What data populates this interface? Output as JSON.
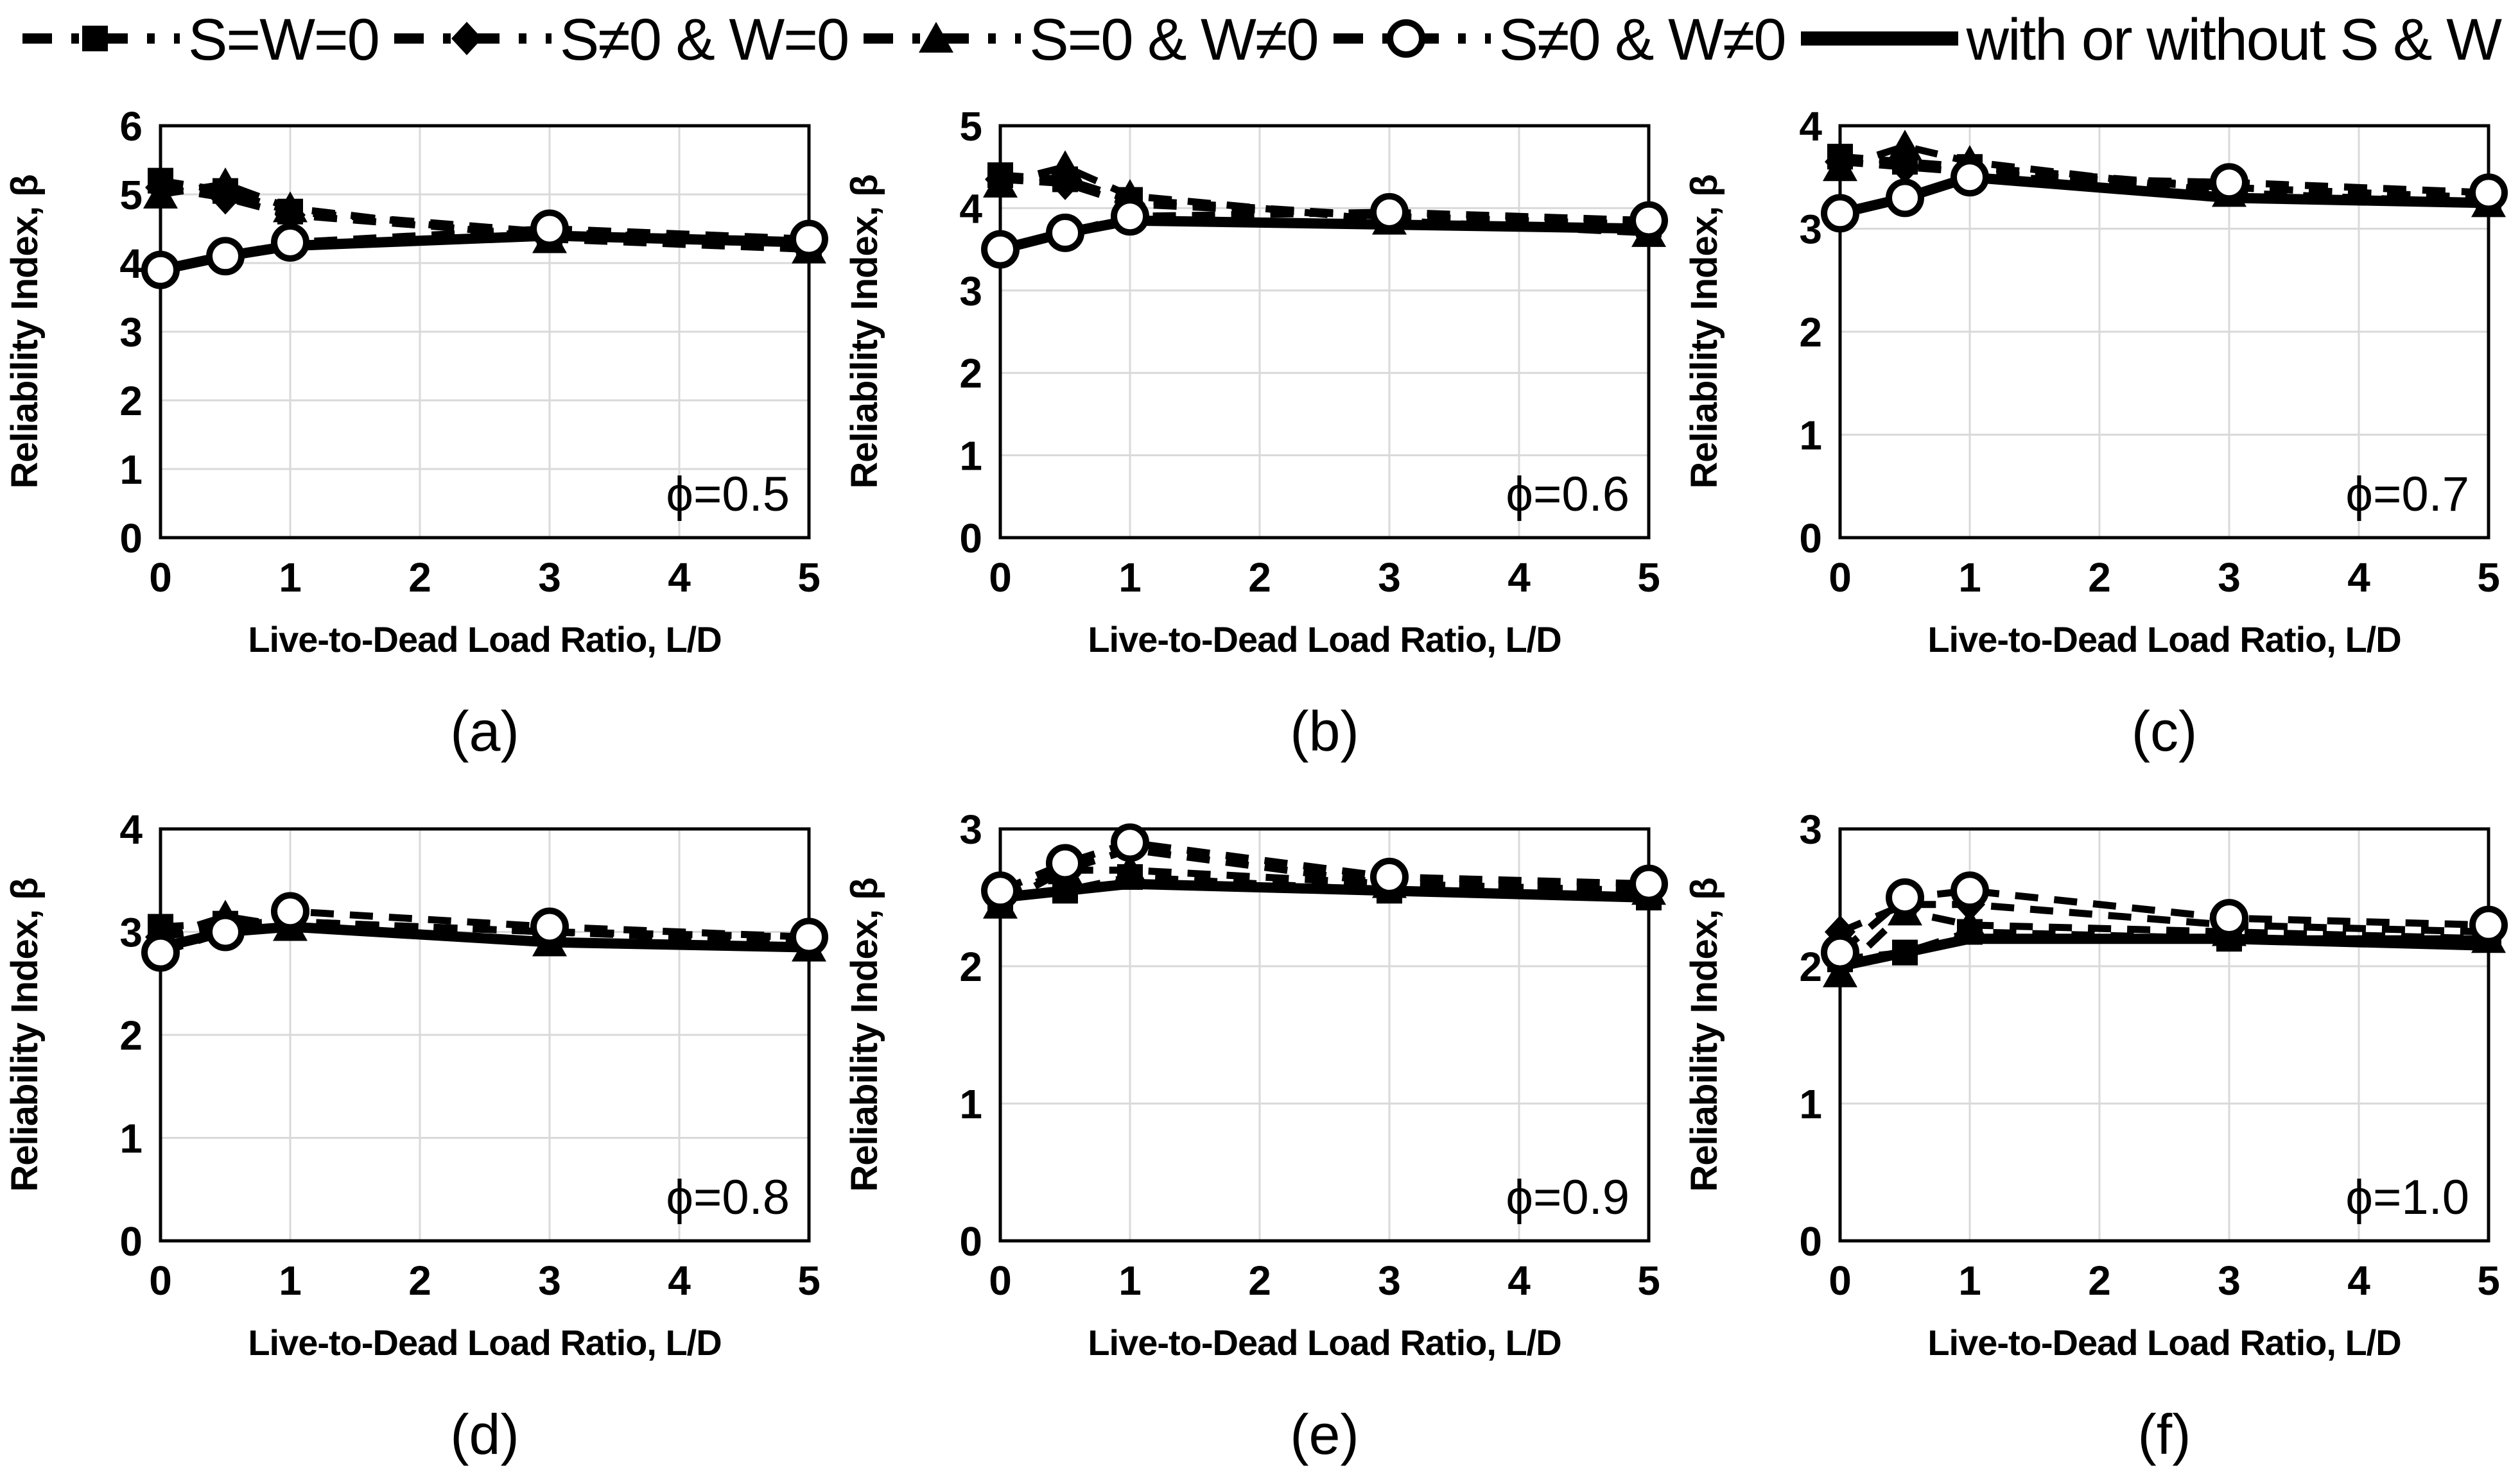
{
  "figure": {
    "xlabel": "Live-to-Dead Load Ratio, L/D",
    "ylabel": "Reliability Index, β",
    "series_color": "#000000",
    "grid_color": "#d9d9d9",
    "background_color": "#ffffff"
  },
  "legend": {
    "position": "top",
    "items": [
      {
        "label": "S=W=0",
        "marker": "square",
        "line": "dashed"
      },
      {
        "label": "S≠0 & W=0",
        "marker": "diamond",
        "line": "dashed"
      },
      {
        "label": "S=0 & W≠0",
        "marker": "triangle",
        "line": "dashed"
      },
      {
        "label": "S≠0 & W≠0",
        "marker": "circle-open",
        "line": "dashed"
      },
      {
        "label": "with or without S & W",
        "marker": "none",
        "line": "solid"
      }
    ]
  },
  "chart_data": [
    {
      "type": "line",
      "panel": "a",
      "caption": "(a)",
      "annotation": "ϕ=0.5",
      "xlabel": "Live-to-Dead Load Ratio, L/D",
      "ylabel": "Reliability Index, β",
      "x": [
        0,
        0.5,
        1,
        3,
        5
      ],
      "xlim": [
        0,
        5
      ],
      "xticks": [
        0,
        1,
        2,
        3,
        4,
        5
      ],
      "ylim": [
        0,
        6
      ],
      "yticks": [
        0,
        1,
        2,
        3,
        4,
        5,
        6
      ],
      "grid": true,
      "series": [
        {
          "name": "S=W=0",
          "marker": "square",
          "line": "dashed",
          "values": [
            5.2,
            5.05,
            4.75,
            4.45,
            4.3
          ]
        },
        {
          "name": "S≠0 & W=0",
          "marker": "diamond",
          "line": "dashed",
          "values": [
            5.1,
            4.95,
            4.7,
            4.4,
            4.3
          ]
        },
        {
          "name": "S=0 & W≠0",
          "marker": "triangle",
          "line": "dashed",
          "values": [
            5.0,
            5.15,
            4.8,
            4.35,
            4.2
          ]
        },
        {
          "name": "S≠0 & W≠0",
          "marker": "circle-open",
          "line": "dashed",
          "values": [
            3.9,
            4.1,
            4.3,
            4.5,
            4.35
          ]
        },
        {
          "name": "with or without S & W",
          "marker": "none",
          "line": "solid",
          "values": [
            3.9,
            4.1,
            4.25,
            4.4,
            4.3
          ]
        }
      ]
    },
    {
      "type": "line",
      "panel": "b",
      "caption": "(b)",
      "annotation": "ϕ=0.6",
      "xlabel": "Live-to-Dead Load Ratio, L/D",
      "ylabel": "Reliability Index, β",
      "x": [
        0,
        0.5,
        1,
        3,
        5
      ],
      "xlim": [
        0,
        5
      ],
      "xticks": [
        0,
        1,
        2,
        3,
        4,
        5
      ],
      "ylim": [
        0,
        5
      ],
      "yticks": [
        0,
        1,
        2,
        3,
        4,
        5
      ],
      "grid": true,
      "series": [
        {
          "name": "S=W=0",
          "marker": "square",
          "line": "dashed",
          "values": [
            4.4,
            4.35,
            4.1,
            3.9,
            3.8
          ]
        },
        {
          "name": "S≠0 & W=0",
          "marker": "diamond",
          "line": "dashed",
          "values": [
            4.35,
            4.3,
            4.05,
            3.9,
            3.8
          ]
        },
        {
          "name": "S=0 & W≠0",
          "marker": "triangle",
          "line": "dashed",
          "values": [
            4.3,
            4.5,
            4.15,
            3.85,
            3.7
          ]
        },
        {
          "name": "S≠0 & W≠0",
          "marker": "circle-open",
          "line": "dashed",
          "values": [
            3.5,
            3.7,
            3.9,
            3.95,
            3.85
          ]
        },
        {
          "name": "with or without S & W",
          "marker": "none",
          "line": "solid",
          "values": [
            3.5,
            3.7,
            3.85,
            3.8,
            3.75
          ]
        }
      ]
    },
    {
      "type": "line",
      "panel": "c",
      "caption": "(c)",
      "annotation": "ϕ=0.7",
      "xlabel": "Live-to-Dead Load Ratio, L/D",
      "ylabel": "Reliability Index, β",
      "x": [
        0,
        0.5,
        1,
        3,
        5
      ],
      "xlim": [
        0,
        5
      ],
      "xticks": [
        0,
        1,
        2,
        3,
        4,
        5
      ],
      "ylim": [
        0,
        4
      ],
      "yticks": [
        0,
        1,
        2,
        3,
        4
      ],
      "grid": true,
      "series": [
        {
          "name": "S=W=0",
          "marker": "square",
          "line": "dashed",
          "values": [
            3.7,
            3.65,
            3.6,
            3.4,
            3.3
          ]
        },
        {
          "name": "S≠0 & W=0",
          "marker": "diamond",
          "line": "dashed",
          "values": [
            3.65,
            3.6,
            3.55,
            3.4,
            3.3
          ]
        },
        {
          "name": "S=0 & W≠0",
          "marker": "triangle",
          "line": "dashed",
          "values": [
            3.6,
            3.8,
            3.65,
            3.35,
            3.25
          ]
        },
        {
          "name": "S≠0 & W≠0",
          "marker": "circle-open",
          "line": "dashed",
          "values": [
            3.15,
            3.3,
            3.5,
            3.45,
            3.35
          ]
        },
        {
          "name": "with or without S & W",
          "marker": "none",
          "line": "solid",
          "values": [
            3.15,
            3.3,
            3.5,
            3.3,
            3.25
          ]
        }
      ]
    },
    {
      "type": "line",
      "panel": "d",
      "caption": "(d)",
      "annotation": "ϕ=0.8",
      "xlabel": "Live-to-Dead Load Ratio, L/D",
      "ylabel": "Reliability Index, β",
      "x": [
        0,
        0.5,
        1,
        3,
        5
      ],
      "xlim": [
        0,
        5
      ],
      "xticks": [
        0,
        1,
        2,
        3,
        4,
        5
      ],
      "ylim": [
        0,
        4
      ],
      "yticks": [
        0,
        1,
        2,
        3,
        4
      ],
      "grid": true,
      "series": [
        {
          "name": "S=W=0",
          "marker": "square",
          "line": "dashed",
          "values": [
            3.05,
            3.08,
            3.1,
            3.0,
            2.95
          ]
        },
        {
          "name": "S≠0 & W=0",
          "marker": "diamond",
          "line": "dashed",
          "values": [
            2.95,
            3.05,
            3.1,
            3.0,
            2.9
          ]
        },
        {
          "name": "S=0 & W≠0",
          "marker": "triangle",
          "line": "dashed",
          "values": [
            2.95,
            3.15,
            3.05,
            2.9,
            2.85
          ]
        },
        {
          "name": "S≠0 & W≠0",
          "marker": "circle-open",
          "line": "dashed",
          "values": [
            2.8,
            3.0,
            3.2,
            3.05,
            2.95
          ]
        },
        {
          "name": "with or without S & W",
          "marker": "none",
          "line": "solid",
          "values": [
            2.85,
            3.0,
            3.05,
            2.9,
            2.85
          ]
        }
      ]
    },
    {
      "type": "line",
      "panel": "e",
      "caption": "(e)",
      "annotation": "ϕ=0.9",
      "xlabel": "Live-to-Dead Load Ratio, L/D",
      "ylabel": "Reliability Index, β",
      "x": [
        0,
        0.5,
        1,
        3,
        5
      ],
      "xlim": [
        0,
        5
      ],
      "xticks": [
        0,
        1,
        2,
        3,
        4,
        5
      ],
      "ylim": [
        0,
        3
      ],
      "yticks": [
        0,
        1,
        2,
        3
      ],
      "grid": true,
      "series": [
        {
          "name": "S=W=0",
          "marker": "square",
          "line": "dashed",
          "values": [
            2.5,
            2.55,
            2.65,
            2.55,
            2.5
          ]
        },
        {
          "name": "S≠0 & W=0",
          "marker": "diamond",
          "line": "dashed",
          "values": [
            2.5,
            2.7,
            2.85,
            2.6,
            2.55
          ]
        },
        {
          "name": "S=0 & W≠0",
          "marker": "triangle",
          "line": "dashed",
          "values": [
            2.45,
            2.7,
            2.7,
            2.6,
            2.55
          ]
        },
        {
          "name": "S≠0 & W≠0",
          "marker": "circle-open",
          "line": "dashed",
          "values": [
            2.55,
            2.75,
            2.9,
            2.65,
            2.6
          ]
        },
        {
          "name": "with or without S & W",
          "marker": "none",
          "line": "solid",
          "values": [
            2.5,
            2.55,
            2.6,
            2.55,
            2.5
          ]
        }
      ]
    },
    {
      "type": "line",
      "panel": "f",
      "caption": "(f)",
      "annotation": "ϕ=1.0",
      "xlabel": "Live-to-Dead Load Ratio, L/D",
      "ylabel": "Reliability Index, β",
      "x": [
        0,
        0.5,
        1,
        3,
        5
      ],
      "xlim": [
        0,
        5
      ],
      "xticks": [
        0,
        1,
        2,
        3,
        4,
        5
      ],
      "ylim": [
        0,
        3
      ],
      "yticks": [
        0,
        1,
        2,
        3
      ],
      "grid": true,
      "series": [
        {
          "name": "S=W=0",
          "marker": "square",
          "line": "dashed",
          "values": [
            2.05,
            2.1,
            2.25,
            2.2,
            2.2
          ]
        },
        {
          "name": "S≠0 & W=0",
          "marker": "diamond",
          "line": "dashed",
          "values": [
            2.25,
            2.45,
            2.45,
            2.3,
            2.25
          ]
        },
        {
          "name": "S=0 & W≠0",
          "marker": "triangle",
          "line": "dashed",
          "values": [
            1.95,
            2.4,
            2.3,
            2.25,
            2.2
          ]
        },
        {
          "name": "S≠0 & W≠0",
          "marker": "circle-open",
          "line": "dashed",
          "values": [
            2.1,
            2.5,
            2.55,
            2.35,
            2.3
          ]
        },
        {
          "name": "with or without S & W",
          "marker": "none",
          "line": "solid",
          "values": [
            2.0,
            2.1,
            2.2,
            2.2,
            2.15
          ]
        }
      ]
    }
  ]
}
